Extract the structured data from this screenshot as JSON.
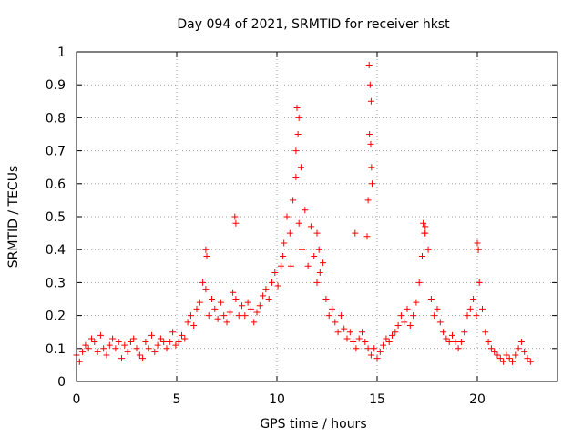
{
  "chart_data": {
    "type": "scatter",
    "title": "Day 094 of 2021, SRMTID for receiver hkst",
    "xlabel": "GPS time / hours",
    "ylabel": "SRMTID / TECUs",
    "xlim": [
      0,
      24
    ],
    "ylim": [
      0,
      1
    ],
    "grid": true,
    "marker": "+",
    "xticks": [
      0,
      5,
      10,
      15,
      20
    ],
    "xtick_labels": [
      "0",
      "5",
      "10",
      "15",
      "20"
    ],
    "yticks": [
      0,
      0.1,
      0.2,
      0.3,
      0.4,
      0.5,
      0.6,
      0.7,
      0.8,
      0.9,
      1
    ],
    "ytick_labels": [
      "0",
      "0.1",
      "0.2",
      "0.3",
      "0.4",
      "0.5",
      "0.6",
      "0.7",
      "0.8",
      "0.9",
      "1"
    ],
    "series": [
      {
        "name": "hkst",
        "color": "#ff0000",
        "x": [
          0.0,
          0.15,
          0.3,
          0.45,
          0.6,
          0.75,
          0.9,
          1.05,
          1.2,
          1.35,
          1.5,
          1.65,
          1.8,
          1.95,
          2.1,
          2.25,
          2.4,
          2.55,
          2.7,
          2.85,
          3.0,
          3.15,
          3.3,
          3.45,
          3.6,
          3.75,
          3.9,
          4.05,
          4.2,
          4.35,
          4.5,
          4.65,
          4.8,
          4.95,
          5.1,
          5.25,
          5.4,
          5.55,
          5.7,
          5.85,
          6.0,
          6.15,
          6.3,
          6.45,
          6.6,
          6.75,
          6.9,
          7.05,
          7.2,
          7.35,
          7.5,
          7.65,
          7.8,
          7.95,
          8.1,
          8.25,
          8.4,
          8.55,
          8.7,
          8.85,
          9.0,
          9.15,
          9.3,
          9.45,
          9.6,
          9.75,
          9.9,
          10.05,
          10.2,
          10.35,
          10.5,
          10.65,
          10.8,
          10.95,
          11.1,
          11.25,
          11.4,
          11.55,
          11.7,
          11.85,
          12.0,
          12.15,
          12.3,
          12.45,
          12.6,
          12.75,
          12.9,
          13.05,
          13.2,
          13.35,
          13.5,
          13.65,
          13.8,
          13.95,
          14.1,
          14.25,
          14.4,
          14.55,
          14.7,
          14.85,
          15.0,
          15.15,
          15.3,
          15.45,
          15.6,
          15.75,
          15.9,
          16.05,
          16.2,
          16.35,
          16.5,
          16.65,
          16.8,
          16.95,
          17.1,
          17.25,
          17.4,
          17.55,
          17.7,
          17.85,
          18.0,
          18.15,
          18.3,
          18.45,
          18.6,
          18.75,
          18.9,
          19.05,
          19.2,
          19.35,
          19.5,
          19.65,
          19.8,
          19.95,
          20.1,
          20.25,
          20.4,
          20.55,
          20.7,
          20.85,
          21.0,
          21.15,
          21.3,
          21.45,
          21.6,
          21.75,
          21.9,
          22.05,
          22.2,
          22.35,
          22.5,
          22.65,
          11.0,
          11.05,
          11.1,
          10.95,
          11.2,
          14.6,
          14.65,
          14.7,
          14.62,
          14.68,
          14.72,
          14.55,
          14.75,
          13.9,
          14.5,
          7.9,
          7.95,
          6.45,
          6.5,
          17.3,
          17.4,
          17.35,
          20.0,
          20.05,
          12.0,
          12.1,
          10.3,
          10.7
        ],
        "y": [
          0.08,
          0.06,
          0.09,
          0.11,
          0.1,
          0.13,
          0.12,
          0.09,
          0.14,
          0.1,
          0.08,
          0.11,
          0.13,
          0.1,
          0.12,
          0.07,
          0.11,
          0.09,
          0.12,
          0.13,
          0.1,
          0.08,
          0.07,
          0.12,
          0.1,
          0.14,
          0.09,
          0.11,
          0.13,
          0.12,
          0.1,
          0.12,
          0.15,
          0.11,
          0.12,
          0.14,
          0.13,
          0.18,
          0.2,
          0.17,
          0.22,
          0.24,
          0.3,
          0.28,
          0.2,
          0.25,
          0.22,
          0.19,
          0.24,
          0.2,
          0.18,
          0.21,
          0.27,
          0.25,
          0.2,
          0.23,
          0.2,
          0.24,
          0.22,
          0.18,
          0.21,
          0.23,
          0.26,
          0.28,
          0.25,
          0.3,
          0.33,
          0.29,
          0.35,
          0.42,
          0.5,
          0.45,
          0.55,
          0.62,
          0.48,
          0.4,
          0.52,
          0.35,
          0.47,
          0.38,
          0.3,
          0.33,
          0.36,
          0.25,
          0.2,
          0.22,
          0.18,
          0.15,
          0.2,
          0.16,
          0.13,
          0.15,
          0.12,
          0.1,
          0.13,
          0.15,
          0.12,
          0.1,
          0.08,
          0.1,
          0.07,
          0.09,
          0.11,
          0.13,
          0.12,
          0.14,
          0.15,
          0.17,
          0.2,
          0.18,
          0.22,
          0.17,
          0.2,
          0.24,
          0.3,
          0.38,
          0.45,
          0.4,
          0.25,
          0.2,
          0.22,
          0.18,
          0.15,
          0.13,
          0.12,
          0.14,
          0.12,
          0.1,
          0.12,
          0.15,
          0.2,
          0.22,
          0.25,
          0.2,
          0.3,
          0.22,
          0.15,
          0.12,
          0.1,
          0.09,
          0.08,
          0.07,
          0.06,
          0.08,
          0.07,
          0.06,
          0.08,
          0.1,
          0.12,
          0.09,
          0.07,
          0.06,
          0.83,
          0.75,
          0.8,
          0.7,
          0.65,
          0.96,
          0.9,
          0.85,
          0.75,
          0.72,
          0.65,
          0.55,
          0.6,
          0.45,
          0.44,
          0.5,
          0.48,
          0.4,
          0.38,
          0.48,
          0.47,
          0.45,
          0.42,
          0.4,
          0.45,
          0.4,
          0.38,
          0.35
        ]
      }
    ]
  }
}
